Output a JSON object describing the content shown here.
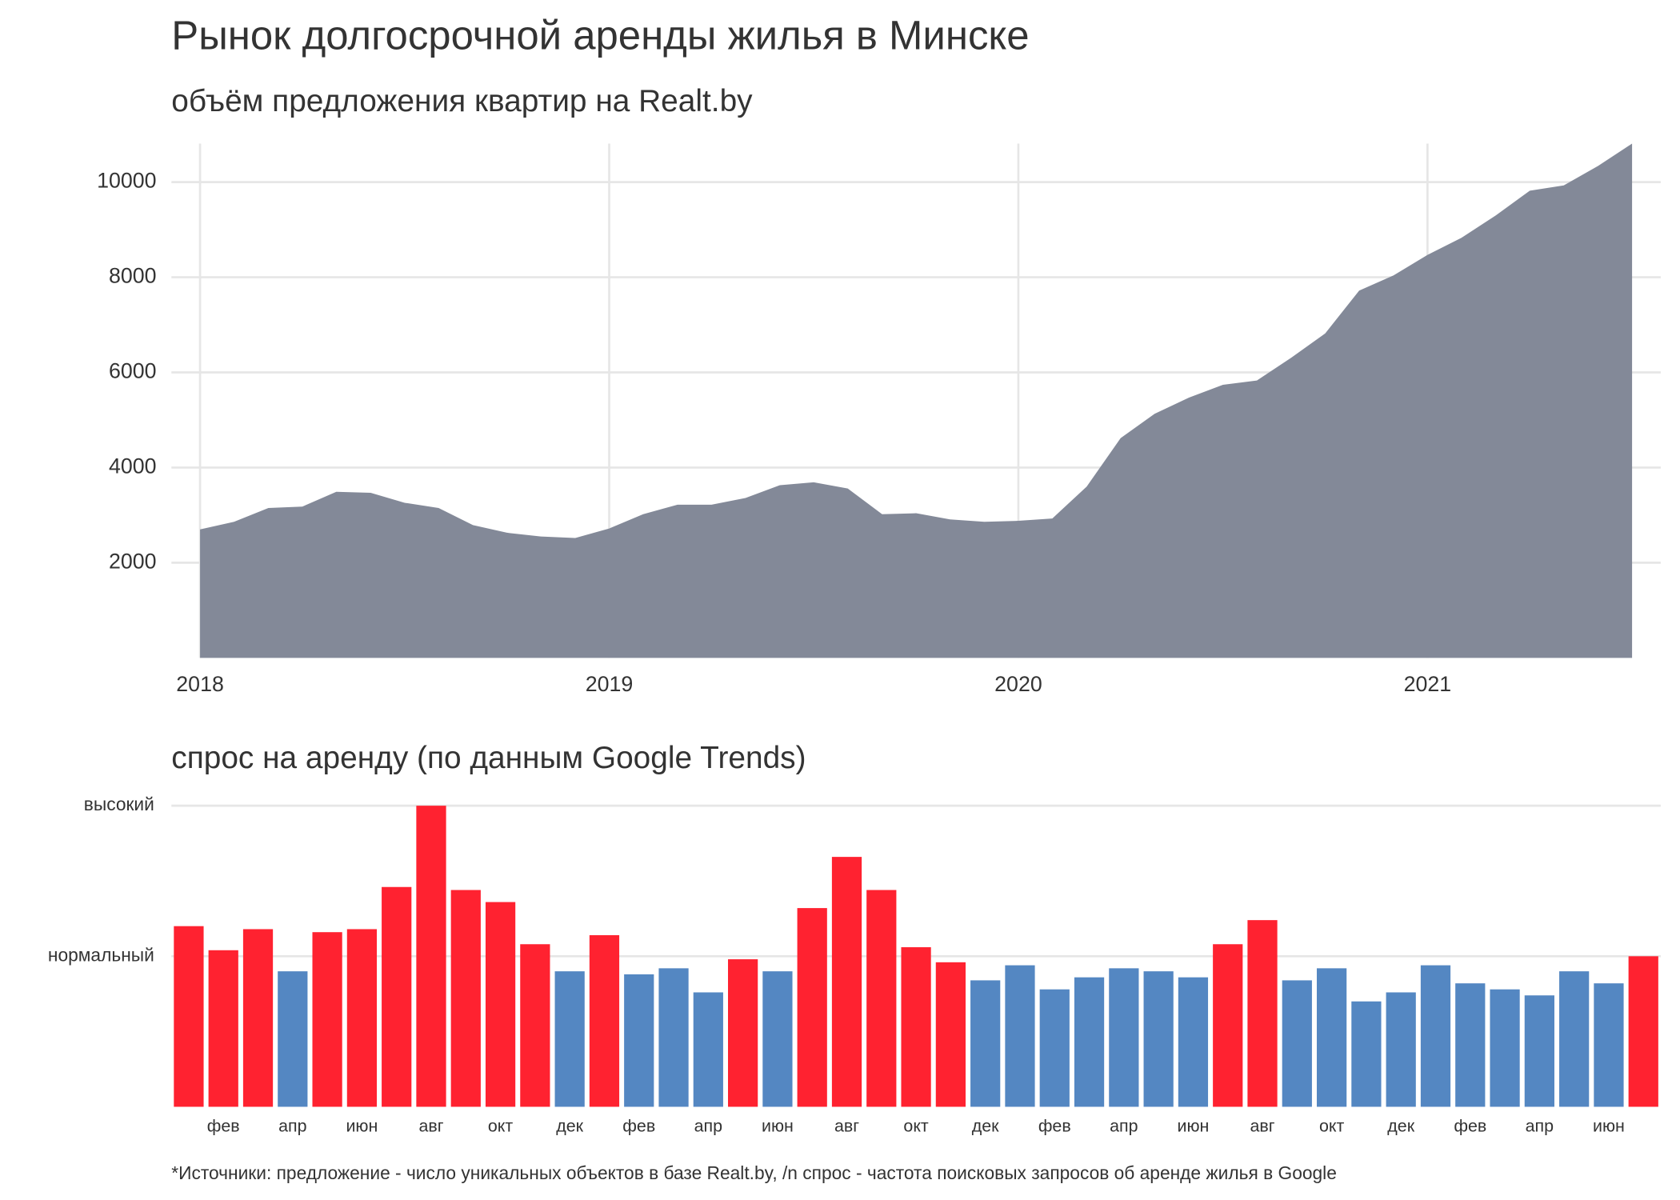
{
  "chart_data": [
    {
      "type": "area",
      "title": "Рынок долгосрочной аренды жилья в Минске",
      "subtitle": "объём предложения квартир на Realt.by",
      "color": "#7f8595",
      "x": [
        2018,
        2018.083,
        2018.167,
        2018.25,
        2018.333,
        2018.417,
        2018.5,
        2018.583,
        2018.667,
        2018.75,
        2018.833,
        2018.917,
        2019,
        2019.083,
        2019.167,
        2019.25,
        2019.333,
        2019.417,
        2019.5,
        2019.583,
        2019.667,
        2019.75,
        2019.833,
        2019.917,
        2020,
        2020.083,
        2020.167,
        2020.25,
        2020.333,
        2020.417,
        2020.5,
        2020.583,
        2020.667,
        2020.75,
        2020.833,
        2020.917,
        2021,
        2021.083,
        2021.167,
        2021.25,
        2021.333,
        2021.417,
        2021.5
      ],
      "values": [
        2700,
        2860,
        3150,
        3180,
        3490,
        3470,
        3260,
        3150,
        2790,
        2630,
        2550,
        2520,
        2720,
        3020,
        3220,
        3220,
        3360,
        3630,
        3690,
        3560,
        3020,
        3040,
        2910,
        2860,
        2880,
        2930,
        3600,
        4620,
        5130,
        5470,
        5740,
        5830,
        6310,
        6820,
        7720,
        8040,
        8470,
        8830,
        9300,
        9820,
        9930,
        10340,
        10810
      ],
      "xlim": [
        2017.93,
        2021.57
      ],
      "xticks": [
        2018,
        2019,
        2020,
        2021
      ],
      "ylim": [
        0,
        10810
      ],
      "yticks": [
        2000,
        4000,
        6000,
        8000,
        10000
      ],
      "grid": true
    },
    {
      "type": "bar",
      "subtitle": "спрос на аренду (по данным Google Trends)",
      "categories": [
        null,
        "фев",
        null,
        "апр",
        null,
        "июн",
        null,
        "авг",
        null,
        "окт",
        null,
        "дек",
        null,
        "фев",
        null,
        "апр",
        null,
        "июн",
        null,
        "авг",
        null,
        "окт",
        null,
        "дек",
        null,
        "фев",
        null,
        "апр",
        null,
        "июн",
        null,
        "авг",
        null,
        "окт",
        null,
        "дек",
        null,
        "фев",
        null,
        "апр",
        null,
        "июн",
        null
      ],
      "values": [
        60,
        52,
        59,
        45,
        58,
        59,
        73,
        100,
        72,
        68,
        54,
        45,
        57,
        44,
        46,
        38,
        49,
        45,
        66,
        83,
        72,
        53,
        48,
        42,
        47,
        39,
        43,
        46,
        45,
        43,
        54,
        62,
        42,
        46,
        35,
        38,
        47,
        41,
        39,
        37,
        45,
        41,
        50
      ],
      "colors": [
        "#ff2230",
        "#ff2230",
        "#ff2230",
        "#5487c2",
        "#ff2230",
        "#ff2230",
        "#ff2230",
        "#ff2230",
        "#ff2230",
        "#ff2230",
        "#ff2230",
        "#5487c2",
        "#ff2230",
        "#5487c2",
        "#5487c2",
        "#5487c2",
        "#ff2230",
        "#5487c2",
        "#ff2230",
        "#ff2230",
        "#ff2230",
        "#ff2230",
        "#ff2230",
        "#5487c2",
        "#5487c2",
        "#5487c2",
        "#5487c2",
        "#5487c2",
        "#5487c2",
        "#5487c2",
        "#ff2230",
        "#ff2230",
        "#5487c2",
        "#5487c2",
        "#5487c2",
        "#5487c2",
        "#5487c2",
        "#5487c2",
        "#5487c2",
        "#5487c2",
        "#5487c2",
        "#5487c2",
        "#ff2230"
      ],
      "ylim": [
        0,
        100
      ],
      "yticks": [
        {
          "value": 50,
          "label": "нормальный"
        },
        {
          "value": 100,
          "label": "высокий"
        }
      ],
      "grid": true
    }
  ],
  "footnote": "*Источники: предложение - число уникальных объектов в базе Realt.by, /n спрос - частота поисковых запросов об аренде жилья в Google"
}
